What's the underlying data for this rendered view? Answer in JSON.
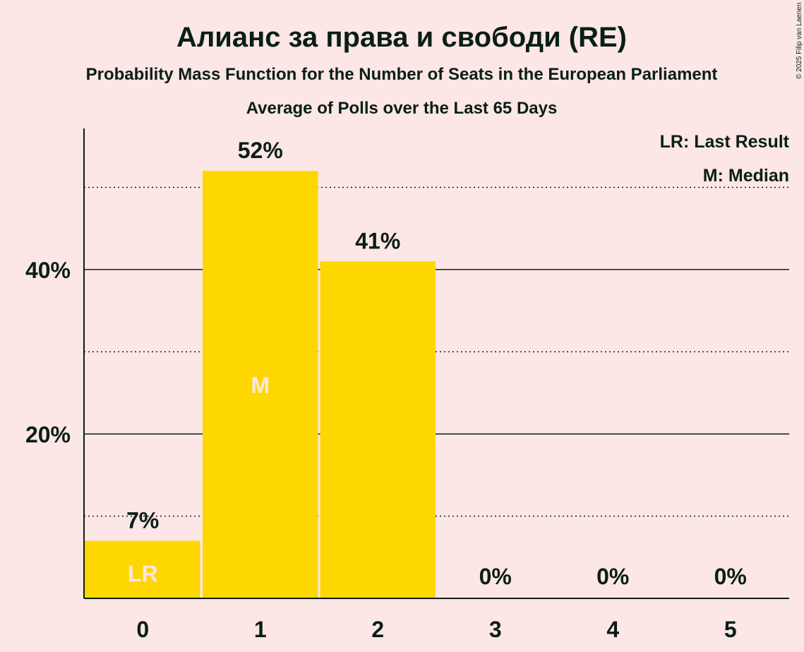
{
  "colors": {
    "background": "#fde6e6",
    "bar": "#ffd700",
    "text": "#0a1f14",
    "inbar_text": "#fde6e6"
  },
  "copyright": "© 2025 Filip van Laenen",
  "chart_data": {
    "type": "bar",
    "title": "Алианс за права и свободи (RE)",
    "subtitle": "Probability Mass Function for the Number of Seats in the European Parliament",
    "subtitle2": "Average of Polls over the Last 65 Days",
    "categories": [
      "0",
      "1",
      "2",
      "3",
      "4",
      "5"
    ],
    "values": [
      7,
      52,
      41,
      0,
      0,
      0
    ],
    "value_labels": [
      "7%",
      "52%",
      "41%",
      "0%",
      "0%",
      "0%"
    ],
    "inbar_labels": [
      "LR",
      "M",
      "",
      "",
      "",
      ""
    ],
    "ylim": [
      0,
      57
    ],
    "y_ticks": [
      {
        "value": 20,
        "label": "20%"
      },
      {
        "value": 40,
        "label": "40%"
      }
    ],
    "minor_gridlines": [
      10,
      30,
      50
    ],
    "legend": [
      "LR: Last Result",
      "M: Median"
    ],
    "legend_position": "top-right",
    "grid": true
  }
}
